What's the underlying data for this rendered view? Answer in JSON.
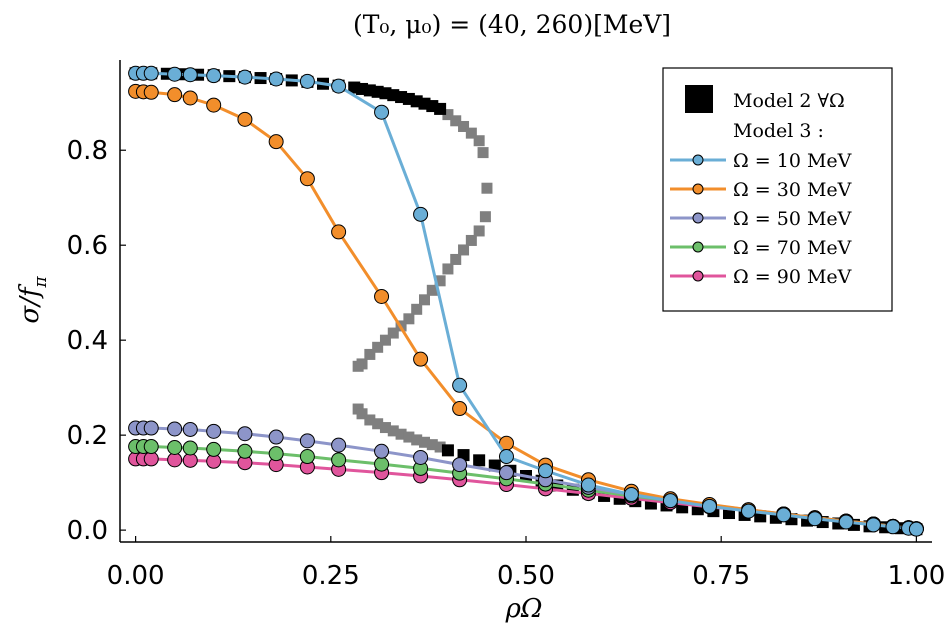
{
  "chart_data": {
    "type": "scatter",
    "title": "(T₀, μ₀) = (40, 260)[MeV]",
    "xlabel": "ρΩ",
    "ylabel": "σ/f",
    "ylabel_sub": "π",
    "xlim": [
      -0.02,
      1.02
    ],
    "ylim": [
      -0.025,
      0.99
    ],
    "xticks": [
      0.0,
      0.25,
      0.5,
      0.75,
      1.0
    ],
    "xtick_labels": [
      "0.00",
      "0.25",
      "0.50",
      "0.75",
      "1.00"
    ],
    "yticks": [
      0.0,
      0.2,
      0.4,
      0.6,
      0.8
    ],
    "ytick_labels": [
      "0.0",
      "0.2",
      "0.4",
      "0.6",
      "0.8"
    ],
    "grid": false,
    "legend_position": "top-right",
    "model2": {
      "name": "Model 2 ∀Ω",
      "upper_black": {
        "x": [
          0.0,
          0.02,
          0.04,
          0.06,
          0.08,
          0.1,
          0.12,
          0.14,
          0.16,
          0.18,
          0.2,
          0.22,
          0.24,
          0.26,
          0.28,
          0.29,
          0.3,
          0.31,
          0.32,
          0.33,
          0.34,
          0.35,
          0.36,
          0.37,
          0.38,
          0.39
        ],
        "y": [
          0.962,
          0.962,
          0.961,
          0.96,
          0.959,
          0.958,
          0.956,
          0.954,
          0.952,
          0.95,
          0.947,
          0.944,
          0.94,
          0.936,
          0.932,
          0.929,
          0.926,
          0.923,
          0.92,
          0.916,
          0.912,
          0.908,
          0.903,
          0.898,
          0.893,
          0.887
        ]
      },
      "gray_unstable": {
        "x": [
          0.4,
          0.41,
          0.42,
          0.43,
          0.44,
          0.445,
          0.45,
          0.448,
          0.44,
          0.43,
          0.42,
          0.41,
          0.4,
          0.39,
          0.38,
          0.37,
          0.36,
          0.35,
          0.34,
          0.33,
          0.32,
          0.31,
          0.3,
          0.29,
          0.285,
          0.285,
          0.29,
          0.3,
          0.31,
          0.32,
          0.33,
          0.34,
          0.35,
          0.36,
          0.37,
          0.38,
          0.39
        ],
        "y": [
          0.875,
          0.862,
          0.85,
          0.836,
          0.82,
          0.795,
          0.72,
          0.66,
          0.63,
          0.61,
          0.59,
          0.57,
          0.55,
          0.525,
          0.505,
          0.485,
          0.465,
          0.445,
          0.43,
          0.415,
          0.4,
          0.385,
          0.37,
          0.35,
          0.345,
          0.255,
          0.245,
          0.232,
          0.224,
          0.216,
          0.209,
          0.202,
          0.196,
          0.19,
          0.185,
          0.18,
          0.175
        ]
      },
      "lower_black": {
        "x": [
          0.4,
          0.42,
          0.44,
          0.46,
          0.48,
          0.5,
          0.52,
          0.54,
          0.56,
          0.58,
          0.6,
          0.62,
          0.64,
          0.66,
          0.68,
          0.7,
          0.72,
          0.74,
          0.76,
          0.78,
          0.8,
          0.82,
          0.84,
          0.86,
          0.88,
          0.9,
          0.92,
          0.94,
          0.96,
          0.98,
          1.0
        ],
        "y": [
          0.168,
          0.158,
          0.147,
          0.136,
          0.125,
          0.114,
          0.104,
          0.094,
          0.085,
          0.078,
          0.072,
          0.066,
          0.061,
          0.056,
          0.052,
          0.048,
          0.044,
          0.04,
          0.036,
          0.032,
          0.029,
          0.026,
          0.023,
          0.02,
          0.017,
          0.014,
          0.011,
          0.008,
          0.006,
          0.004,
          0.002
        ]
      }
    },
    "model3_label": "Model 3 :",
    "series": [
      {
        "name": "Ω = 10 MeV",
        "color": "#6aaed6",
        "x": [
          0.0,
          0.01,
          0.02,
          0.05,
          0.07,
          0.1,
          0.14,
          0.18,
          0.22,
          0.26,
          0.315,
          0.365,
          0.415,
          0.475,
          0.525,
          0.58,
          0.635,
          0.685,
          0.735,
          0.785,
          0.83,
          0.87,
          0.91,
          0.945,
          0.97,
          0.99,
          1.0
        ],
        "y": [
          0.962,
          0.962,
          0.962,
          0.96,
          0.959,
          0.957,
          0.954,
          0.95,
          0.945,
          0.935,
          0.88,
          0.665,
          0.305,
          0.155,
          0.125,
          0.095,
          0.075,
          0.062,
          0.05,
          0.04,
          0.032,
          0.024,
          0.017,
          0.011,
          0.007,
          0.004,
          0.002
        ]
      },
      {
        "name": "Ω = 30 MeV",
        "color": "#f28e2b",
        "x": [
          0.0,
          0.01,
          0.02,
          0.05,
          0.07,
          0.1,
          0.14,
          0.18,
          0.22,
          0.26,
          0.315,
          0.365,
          0.415,
          0.475,
          0.525,
          0.58,
          0.635,
          0.685,
          0.735,
          0.785,
          0.83,
          0.87,
          0.91,
          0.945,
          0.97,
          0.99,
          1.0
        ],
        "y": [
          0.924,
          0.923,
          0.922,
          0.917,
          0.91,
          0.895,
          0.865,
          0.818,
          0.74,
          0.628,
          0.492,
          0.36,
          0.256,
          0.183,
          0.137,
          0.106,
          0.082,
          0.066,
          0.054,
          0.043,
          0.034,
          0.026,
          0.019,
          0.013,
          0.008,
          0.005,
          0.003
        ]
      },
      {
        "name": "Ω = 50 MeV",
        "color": "#8d95c9",
        "x": [
          0.0,
          0.01,
          0.02,
          0.05,
          0.07,
          0.1,
          0.14,
          0.18,
          0.22,
          0.26,
          0.315,
          0.365,
          0.415,
          0.475,
          0.525,
          0.58,
          0.635,
          0.685,
          0.735,
          0.785,
          0.83,
          0.87,
          0.91,
          0.945,
          0.97,
          0.99,
          1.0
        ],
        "y": [
          0.215,
          0.215,
          0.215,
          0.213,
          0.212,
          0.208,
          0.203,
          0.196,
          0.188,
          0.179,
          0.166,
          0.153,
          0.138,
          0.121,
          0.106,
          0.09,
          0.075,
          0.064,
          0.053,
          0.043,
          0.034,
          0.026,
          0.019,
          0.013,
          0.008,
          0.005,
          0.003
        ]
      },
      {
        "name": "Ω = 70 MeV",
        "color": "#6cbf6a",
        "x": [
          0.0,
          0.01,
          0.02,
          0.05,
          0.07,
          0.1,
          0.14,
          0.18,
          0.22,
          0.26,
          0.315,
          0.365,
          0.415,
          0.475,
          0.525,
          0.58,
          0.635,
          0.685,
          0.735,
          0.785,
          0.83,
          0.87,
          0.91,
          0.945,
          0.97,
          0.99,
          1.0
        ],
        "y": [
          0.176,
          0.176,
          0.176,
          0.174,
          0.173,
          0.17,
          0.166,
          0.161,
          0.155,
          0.148,
          0.139,
          0.13,
          0.12,
          0.108,
          0.097,
          0.084,
          0.072,
          0.062,
          0.052,
          0.042,
          0.034,
          0.026,
          0.019,
          0.013,
          0.008,
          0.005,
          0.003
        ]
      },
      {
        "name": "Ω = 90 MeV",
        "color": "#e0559c",
        "x": [
          0.0,
          0.01,
          0.02,
          0.05,
          0.07,
          0.1,
          0.14,
          0.18,
          0.22,
          0.26,
          0.315,
          0.365,
          0.415,
          0.475,
          0.525,
          0.58,
          0.635,
          0.685,
          0.735,
          0.785,
          0.83,
          0.87,
          0.91,
          0.945,
          0.97,
          0.99,
          1.0
        ],
        "y": [
          0.15,
          0.15,
          0.15,
          0.148,
          0.147,
          0.145,
          0.142,
          0.138,
          0.133,
          0.128,
          0.121,
          0.114,
          0.106,
          0.096,
          0.087,
          0.077,
          0.067,
          0.058,
          0.049,
          0.041,
          0.033,
          0.025,
          0.018,
          0.012,
          0.008,
          0.005,
          0.003
        ]
      }
    ]
  }
}
